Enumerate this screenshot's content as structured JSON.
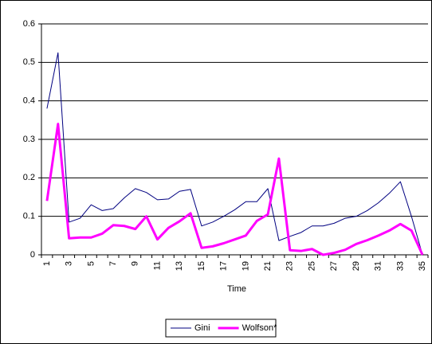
{
  "chart_data": {
    "type": "line",
    "x_label": "Time",
    "categories": [
      1,
      null,
      3,
      null,
      5,
      null,
      7,
      null,
      9,
      null,
      11,
      null,
      13,
      null,
      15,
      null,
      17,
      null,
      19,
      null,
      21,
      null,
      23,
      null,
      25,
      null,
      27,
      null,
      29,
      null,
      31,
      null,
      33,
      null,
      35
    ],
    "series": [
      {
        "name": "Gini",
        "color": "#000080",
        "width": 1,
        "values": [
          0.38,
          0.525,
          0.085,
          0.095,
          0.13,
          0.115,
          0.12,
          0.148,
          0.172,
          0.162,
          0.143,
          0.145,
          0.165,
          0.17,
          0.075,
          0.085,
          0.1,
          0.117,
          0.138,
          0.138,
          0.172,
          0.037,
          0.048,
          0.058,
          0.075,
          0.075,
          0.082,
          0.095,
          0.1,
          0.115,
          0.135,
          0.16,
          0.19,
          0.1,
          0.0
        ]
      },
      {
        "name": "Wolfson*",
        "color": "#ff00ff",
        "width": 3,
        "values": [
          0.14,
          0.34,
          0.043,
          0.045,
          0.045,
          0.055,
          0.077,
          0.075,
          0.067,
          0.1,
          0.04,
          0.07,
          0.087,
          0.108,
          0.018,
          0.022,
          0.03,
          0.04,
          0.05,
          0.088,
          0.105,
          0.25,
          0.012,
          0.01,
          0.015,
          0.0,
          0.005,
          0.013,
          0.028,
          0.038,
          0.05,
          0.063,
          0.08,
          0.063,
          0.0
        ]
      }
    ],
    "ylim": [
      0,
      0.6
    ],
    "yticks": [
      0,
      0.1,
      0.2,
      0.3,
      0.4,
      0.5,
      0.6
    ],
    "grid": true,
    "legend": "bottom"
  }
}
